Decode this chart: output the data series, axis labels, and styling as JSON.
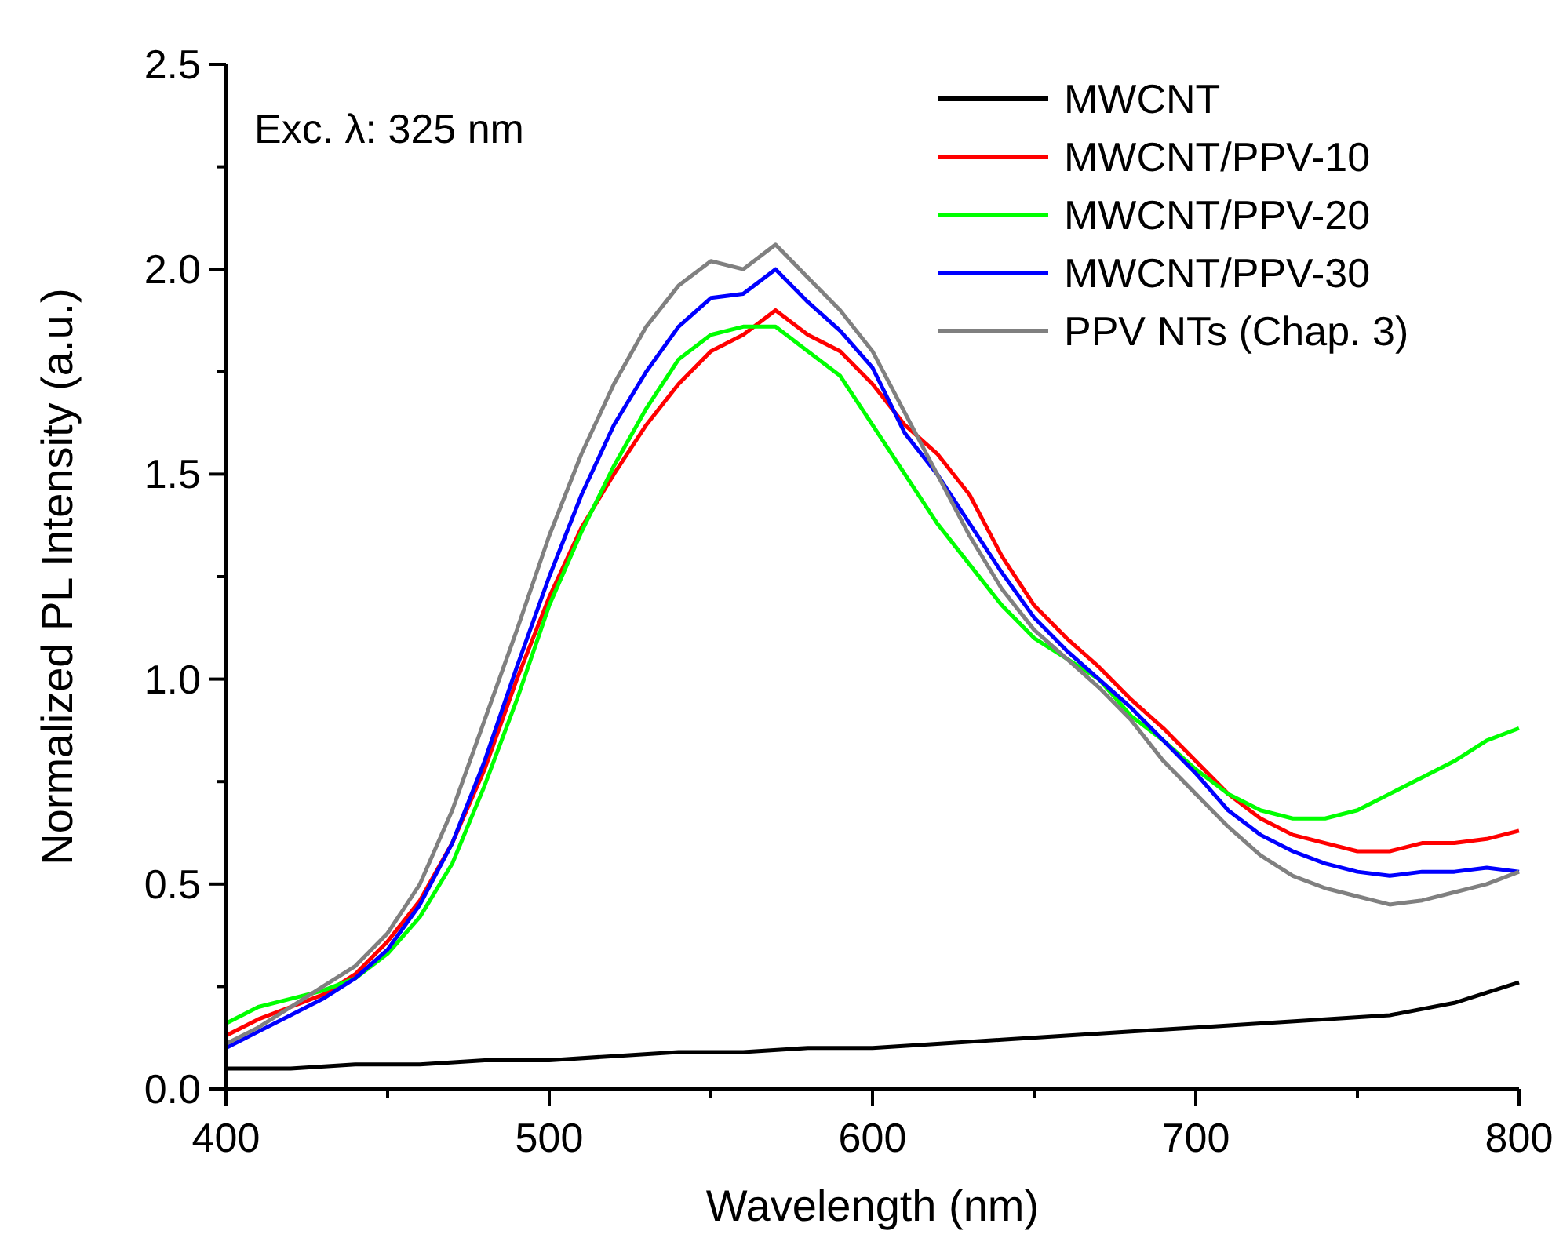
{
  "chart_data": {
    "type": "line",
    "xlabel": "Wavelength (nm)",
    "ylabel": "Normalized PL Intensity (a.u.)",
    "annotations": [
      "Exc. λ: 325 nm"
    ],
    "xlim": [
      400,
      800
    ],
    "ylim": [
      0,
      2.5
    ],
    "xticks": [
      400,
      {
        "value": 450,
        "label": null
      },
      500,
      {
        "value": 550,
        "label": null
      },
      600,
      {
        "value": 650,
        "label": null
      },
      700,
      {
        "value": 750,
        "label": null
      },
      800
    ],
    "yticks": [
      {
        "value": 0,
        "label": "0.0"
      },
      {
        "value": 0.25,
        "label": null
      },
      {
        "value": 0.5,
        "label": "0.5"
      },
      {
        "value": 0.75,
        "label": null
      },
      {
        "value": 1,
        "label": "1.0"
      },
      {
        "value": 1.25,
        "label": null
      },
      {
        "value": 1.5,
        "label": "1.5"
      },
      {
        "value": 1.75,
        "label": null
      },
      {
        "value": 2,
        "label": "2.0"
      },
      {
        "value": 2.25,
        "label": null
      },
      {
        "value": 2.5,
        "label": "2.5"
      }
    ],
    "grid": false,
    "legend": "top right",
    "line_style": "solid",
    "marker": "none",
    "x": [
      400,
      410,
      420,
      430,
      440,
      450,
      460,
      470,
      480,
      490,
      500,
      510,
      520,
      530,
      540,
      550,
      560,
      570,
      580,
      590,
      600,
      610,
      620,
      630,
      640,
      650,
      660,
      670,
      680,
      690,
      700,
      710,
      720,
      730,
      740,
      750,
      760,
      770,
      780,
      790,
      800
    ],
    "series": [
      {
        "name": "MWCNT",
        "color": "#000000",
        "x": [
          400,
          420,
          440,
          460,
          480,
          500,
          520,
          540,
          560,
          580,
          600,
          620,
          640,
          660,
          680,
          700,
          720,
          740,
          760,
          780,
          800
        ],
        "values": [
          0.05,
          0.05,
          0.06,
          0.06,
          0.07,
          0.07,
          0.08,
          0.09,
          0.09,
          0.1,
          0.1,
          0.11,
          0.12,
          0.13,
          0.14,
          0.15,
          0.16,
          0.17,
          0.18,
          0.21,
          0.26
        ]
      },
      {
        "name": "MWCNT/PPV-10",
        "color": "#ff0000",
        "values": [
          0.13,
          0.17,
          0.2,
          0.23,
          0.28,
          0.36,
          0.46,
          0.6,
          0.78,
          1.0,
          1.2,
          1.37,
          1.5,
          1.62,
          1.72,
          1.8,
          1.84,
          1.9,
          1.84,
          1.8,
          1.72,
          1.62,
          1.55,
          1.45,
          1.3,
          1.18,
          1.1,
          1.03,
          0.95,
          0.88,
          0.8,
          0.72,
          0.66,
          0.62,
          0.6,
          0.58,
          0.58,
          0.6,
          0.6,
          0.61,
          0.63
        ]
      },
      {
        "name": "MWCNT/PPV-20",
        "color": "#00ff00",
        "values": [
          0.16,
          0.2,
          0.22,
          0.24,
          0.27,
          0.33,
          0.42,
          0.55,
          0.74,
          0.95,
          1.18,
          1.36,
          1.52,
          1.66,
          1.78,
          1.84,
          1.86,
          1.86,
          1.8,
          1.74,
          1.62,
          1.5,
          1.38,
          1.28,
          1.18,
          1.1,
          1.05,
          1.0,
          0.91,
          0.85,
          0.78,
          0.72,
          0.68,
          0.66,
          0.66,
          0.68,
          0.72,
          0.76,
          0.8,
          0.85,
          0.88
        ]
      },
      {
        "name": "MWCNT/PPV-30",
        "color": "#0000ff",
        "values": [
          0.1,
          0.14,
          0.18,
          0.22,
          0.27,
          0.34,
          0.45,
          0.6,
          0.8,
          1.03,
          1.25,
          1.45,
          1.62,
          1.75,
          1.86,
          1.93,
          1.94,
          2.0,
          1.92,
          1.85,
          1.76,
          1.6,
          1.5,
          1.38,
          1.26,
          1.15,
          1.07,
          1.0,
          0.93,
          0.85,
          0.77,
          0.68,
          0.62,
          0.58,
          0.55,
          0.53,
          0.52,
          0.53,
          0.53,
          0.54,
          0.53
        ]
      },
      {
        "name": "PPV NTs (Chap. 3)",
        "color": "#808080",
        "values": [
          0.11,
          0.15,
          0.2,
          0.25,
          0.3,
          0.38,
          0.5,
          0.68,
          0.9,
          1.12,
          1.35,
          1.55,
          1.72,
          1.86,
          1.96,
          2.02,
          2.0,
          2.06,
          1.98,
          1.9,
          1.8,
          1.65,
          1.5,
          1.35,
          1.22,
          1.12,
          1.05,
          0.98,
          0.9,
          0.8,
          0.72,
          0.64,
          0.57,
          0.52,
          0.49,
          0.47,
          0.45,
          0.46,
          0.48,
          0.5,
          0.53
        ]
      }
    ]
  }
}
